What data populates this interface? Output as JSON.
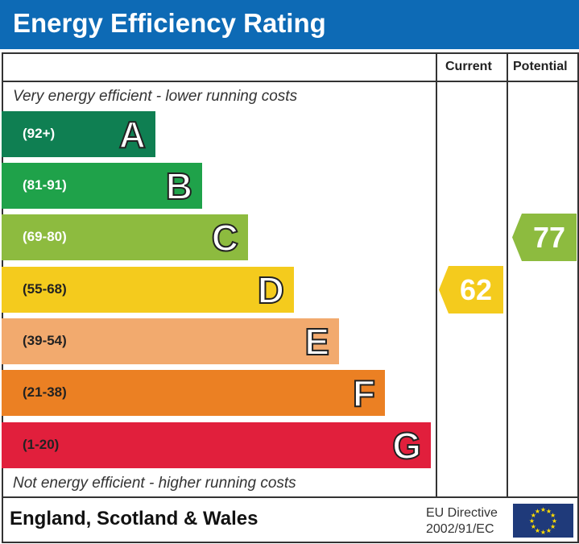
{
  "title": "Energy Efficiency Rating",
  "columns": {
    "current": "Current",
    "potential": "Potential"
  },
  "top_note": "Very energy efficient - lower running costs",
  "bottom_note": "Not energy efficient - higher running costs",
  "footer": {
    "region": "England, Scotland & Wales",
    "directive_line1": "EU Directive",
    "directive_line2": "2002/91/EC"
  },
  "chart_data": {
    "type": "bar",
    "bands": [
      {
        "letter": "A",
        "range": "(92+)",
        "color": "#0f7f52"
      },
      {
        "letter": "B",
        "range": "(81-91)",
        "color": "#1fa24a"
      },
      {
        "letter": "C",
        "range": "(69-80)",
        "color": "#8dbb3f"
      },
      {
        "letter": "D",
        "range": "(55-68)",
        "color": "#f4cb1d"
      },
      {
        "letter": "E",
        "range": "(39-54)",
        "color": "#f2aa6e"
      },
      {
        "letter": "F",
        "range": "(21-38)",
        "color": "#eb8023"
      },
      {
        "letter": "G",
        "range": "(1-20)",
        "color": "#e11f3c"
      }
    ],
    "current": {
      "value": "62",
      "band": "D",
      "color": "#f4cb1d"
    },
    "potential": {
      "value": "77",
      "band": "C",
      "color": "#8dbb3f"
    }
  }
}
